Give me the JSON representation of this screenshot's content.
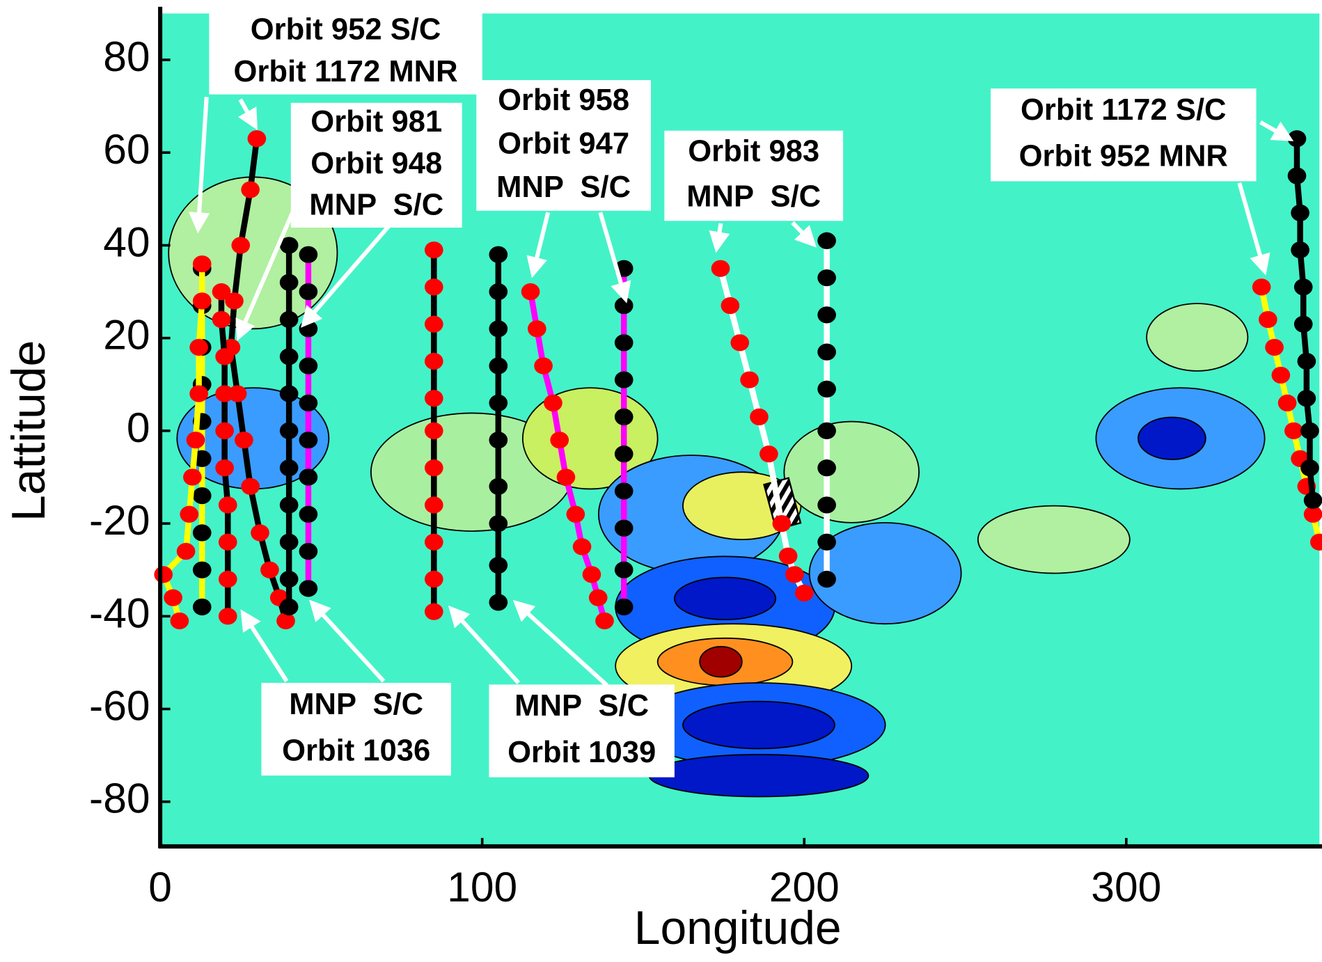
{
  "chart_data": {
    "type": "scatter",
    "xlabel": "Longitude",
    "ylabel": "Lattitude",
    "xlim": [
      0,
      360
    ],
    "ylim": [
      -90,
      90
    ],
    "xticks": [
      0,
      100,
      200,
      300
    ],
    "yticks": [
      -80,
      -60,
      -40,
      -20,
      0,
      20,
      40,
      60,
      80
    ],
    "background": "#44f2c8",
    "annotations": [
      [
        "Orbit 952 S/C",
        "Orbit 1172 MNR"
      ],
      [
        "Orbit 981",
        "Orbit 948",
        "MNP  S/C"
      ],
      [
        "Orbit 958",
        "Orbit 947",
        "MNP  S/C"
      ],
      [
        "Orbit 983",
        "MNP  S/C"
      ],
      [
        "Orbit 1172 S/C",
        "Orbit 952 MNR"
      ],
      [
        "MNP  S/C",
        "Orbit 1036"
      ],
      [
        "MNP  S/C",
        "Orbit 1039"
      ]
    ],
    "series": [
      {
        "color": "#000000",
        "line_color": "#ffff00",
        "x": [
          13,
          13,
          13,
          13,
          13,
          13,
          13,
          13,
          13,
          13
        ],
        "values": [
          35,
          27,
          18,
          10,
          2,
          -6,
          -14,
          -22,
          -30,
          -38
        ]
      },
      {
        "color": "#ff0000",
        "line_color": "#ffff00",
        "x": [
          13,
          13,
          12,
          12,
          11,
          10,
          9,
          8,
          1,
          4,
          6
        ],
        "values": [
          36,
          28,
          18,
          8,
          -2,
          -10,
          -18,
          -26,
          -31,
          -36,
          -41
        ]
      },
      {
        "color": "#ff0000",
        "line_color": "#000000",
        "x": [
          30,
          28,
          25,
          23,
          22,
          24,
          26,
          28,
          31,
          34,
          37,
          39
        ],
        "values": [
          63,
          52,
          40,
          28,
          18,
          8,
          -2,
          -12,
          -22,
          -30,
          -36,
          -41
        ]
      },
      {
        "color": "#ff0000",
        "line_color": "#000000",
        "x": [
          19,
          19,
          20,
          20,
          20,
          20,
          21,
          21,
          21,
          21
        ],
        "values": [
          30,
          24,
          16,
          8,
          0,
          -8,
          -16,
          -24,
          -32,
          -40
        ]
      },
      {
        "color": "#000000",
        "line_color": "#000000",
        "x": [
          40,
          40,
          40,
          40,
          40,
          40,
          40,
          40,
          40,
          40,
          40
        ],
        "values": [
          40,
          32,
          24,
          16,
          8,
          0,
          -8,
          -16,
          -24,
          -32,
          -38
        ]
      },
      {
        "color": "#000000",
        "line_color": "#ff00ff",
        "x": [
          46,
          46,
          46,
          46,
          46,
          46,
          46,
          46,
          46,
          46
        ],
        "values": [
          38,
          30,
          22,
          14,
          6,
          -2,
          -10,
          -18,
          -26,
          -34
        ]
      },
      {
        "color": "#ff0000",
        "line_color": "#000000",
        "x": [
          85,
          85,
          85,
          85,
          85,
          85,
          85,
          85,
          85,
          85,
          85
        ],
        "values": [
          39,
          31,
          23,
          15,
          7,
          0,
          -8,
          -16,
          -24,
          -32,
          -39
        ]
      },
      {
        "color": "#000000",
        "line_color": "#000000",
        "x": [
          105,
          105,
          105,
          105,
          105,
          105,
          105,
          105,
          105,
          105
        ],
        "values": [
          38,
          30,
          22,
          14,
          6,
          -2,
          -12,
          -20,
          -29,
          -37
        ]
      },
      {
        "color": "#ff0000",
        "line_color": "#ff00ff",
        "x": [
          115,
          117,
          119,
          122,
          124,
          126,
          129,
          131,
          134,
          136,
          138
        ],
        "values": [
          30,
          22,
          14,
          6,
          -2,
          -10,
          -18,
          -25,
          -31,
          -36,
          -41
        ]
      },
      {
        "color": "#000000",
        "line_color": "#ff00ff",
        "x": [
          144,
          144,
          144,
          144,
          144,
          144,
          144,
          144,
          144,
          144
        ],
        "values": [
          35,
          27,
          19,
          11,
          3,
          -5,
          -13,
          -21,
          -30,
          -38
        ]
      },
      {
        "color": "#ff0000",
        "line_color": "#ffffff",
        "x": [
          174,
          177,
          180,
          183,
          186,
          189,
          193,
          195,
          197,
          200
        ],
        "values": [
          35,
          27,
          19,
          11,
          3,
          -5,
          -20,
          -27,
          -31,
          -35
        ]
      },
      {
        "color": "#000000",
        "line_color": "#ffffff",
        "x": [
          207,
          207,
          207,
          207,
          207,
          207,
          207,
          207,
          207,
          207
        ],
        "values": [
          41,
          33,
          25,
          17,
          9,
          0,
          -8,
          -16,
          -24,
          -32
        ]
      },
      {
        "color": "#ff0000",
        "line_color": "#ffff00",
        "x": [
          342,
          344,
          346,
          348,
          350,
          352,
          354,
          356,
          358,
          360
        ],
        "values": [
          31,
          24,
          18,
          12,
          6,
          0,
          -6,
          -12,
          -18,
          -24
        ]
      },
      {
        "color": "#000000",
        "line_color": "#000000",
        "x": [
          353,
          353,
          354,
          354,
          355,
          355,
          356,
          356,
          357,
          357,
          358
        ],
        "values": [
          63,
          55,
          47,
          39,
          31,
          23,
          15,
          7,
          0,
          -8,
          -15
        ]
      }
    ]
  }
}
